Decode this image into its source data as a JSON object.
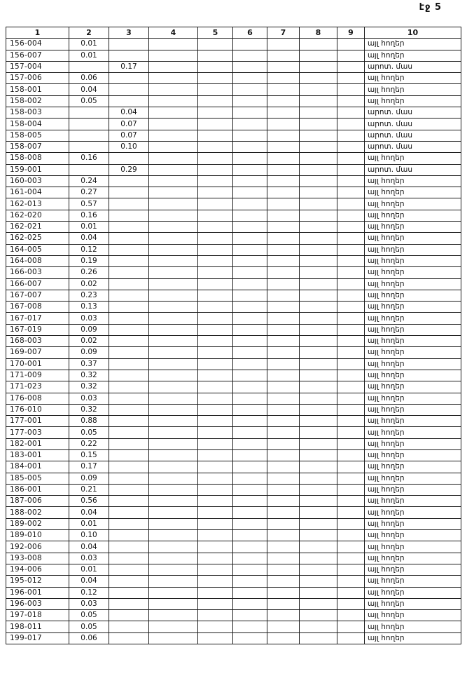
{
  "page": {
    "label": "էջ 5"
  },
  "table": {
    "columns": [
      "1",
      "2",
      "3",
      "4",
      "5",
      "6",
      "7",
      "8",
      "9",
      "10"
    ],
    "land_type_other": "այլ հողեր",
    "land_type_pasture": "արոտ. մաս",
    "rows": [
      [
        "156-004",
        "0.01",
        "",
        "այլ հողեր"
      ],
      [
        "156-007",
        "0.01",
        "",
        "այլ հողեր"
      ],
      [
        "157-004",
        "",
        "0.17",
        "արոտ. մաս"
      ],
      [
        "157-006",
        "0.06",
        "",
        "այլ հողեր"
      ],
      [
        "158-001",
        "0.04",
        "",
        "այլ հողեր"
      ],
      [
        "158-002",
        "0.05",
        "",
        "այլ հողեր"
      ],
      [
        "158-003",
        "",
        "0.04",
        "արոտ. մաս"
      ],
      [
        "158-004",
        "",
        "0.07",
        "արոտ. մաս"
      ],
      [
        "158-005",
        "",
        "0.07",
        "արոտ. մաս"
      ],
      [
        "158-007",
        "",
        "0.10",
        "արոտ. մաս"
      ],
      [
        "158-008",
        "0.16",
        "",
        "այլ հողեր"
      ],
      [
        "159-001",
        "",
        "0.29",
        "արոտ. մաս"
      ],
      [
        "160-003",
        "0.24",
        "",
        "այլ հողեր"
      ],
      [
        "161-004",
        "0.27",
        "",
        "այլ հողեր"
      ],
      [
        "162-013",
        "0.57",
        "",
        "այլ հողեր"
      ],
      [
        "162-020",
        "0.16",
        "",
        "այլ հողեր"
      ],
      [
        "162-021",
        "0.01",
        "",
        "այլ հողեր"
      ],
      [
        "162-025",
        "0.04",
        "",
        "այլ հողեր"
      ],
      [
        "164-005",
        "0.12",
        "",
        "այլ հողեր"
      ],
      [
        "164-008",
        "0.19",
        "",
        "այլ հողեր"
      ],
      [
        "166-003",
        "0.26",
        "",
        "այլ հողեր"
      ],
      [
        "166-007",
        "0.02",
        "",
        "այլ հողեր"
      ],
      [
        "167-007",
        "0.23",
        "",
        "այլ հողեր"
      ],
      [
        "167-008",
        "0.13",
        "",
        "այլ հողեր"
      ],
      [
        "167-017",
        "0.03",
        "",
        "այլ հողեր"
      ],
      [
        "167-019",
        "0.09",
        "",
        "այլ հողեր"
      ],
      [
        "168-003",
        "0.02",
        "",
        "այլ հողեր"
      ],
      [
        "169-007",
        "0.09",
        "",
        "այլ հողեր"
      ],
      [
        "170-001",
        "0.37",
        "",
        "այլ հողեր"
      ],
      [
        "171-009",
        "0.32",
        "",
        "այլ հողեր"
      ],
      [
        "171-023",
        "0.32",
        "",
        "այլ հողեր"
      ],
      [
        "176-008",
        "0.03",
        "",
        "այլ հողեր"
      ],
      [
        "176-010",
        "0.32",
        "",
        "այլ հողեր"
      ],
      [
        "177-001",
        "0.88",
        "",
        "այլ հողեր"
      ],
      [
        "177-003",
        "0.05",
        "",
        "այլ հողեր"
      ],
      [
        "182-001",
        "0.22",
        "",
        "այլ հողեր"
      ],
      [
        "183-001",
        "0.15",
        "",
        "այլ հողեր"
      ],
      [
        "184-001",
        "0.17",
        "",
        "այլ հողեր"
      ],
      [
        "185-005",
        "0.09",
        "",
        "այլ հողեր"
      ],
      [
        "186-001",
        "0.21",
        "",
        "այլ հողեր"
      ],
      [
        "187-006",
        "0.56",
        "",
        "այլ հողեր"
      ],
      [
        "188-002",
        "0.04",
        "",
        "այլ հողեր"
      ],
      [
        "189-002",
        "0.01",
        "",
        "այլ հողեր"
      ],
      [
        "189-010",
        "0.10",
        "",
        "այլ հողեր"
      ],
      [
        "192-006",
        "0.04",
        "",
        "այլ հողեր"
      ],
      [
        "193-008",
        "0.03",
        "",
        "այլ հողեր"
      ],
      [
        "194-006",
        "0.01",
        "",
        "այլ հողեր"
      ],
      [
        "195-012",
        "0.04",
        "",
        "այլ հողեր"
      ],
      [
        "196-001",
        "0.12",
        "",
        "այլ հողեր"
      ],
      [
        "196-003",
        "0.03",
        "",
        "այլ հողեր"
      ],
      [
        "197-018",
        "0.05",
        "",
        "այլ հողեր"
      ],
      [
        "198-011",
        "0.05",
        "",
        "այլ հողեր"
      ],
      [
        "199-017",
        "0.06",
        "",
        "այլ հողեր"
      ]
    ]
  }
}
